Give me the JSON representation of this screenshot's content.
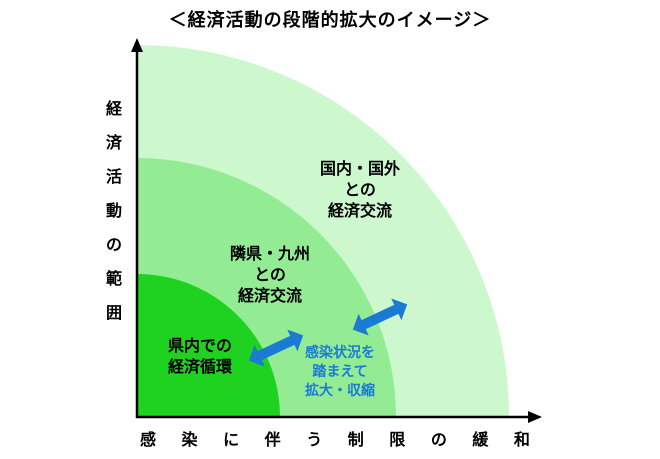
{
  "title": "＜経済活動の段階的拡大のイメージ＞",
  "y_axis_label": [
    "経",
    "済",
    "活",
    "動",
    "の",
    "範",
    "囲"
  ],
  "x_axis_label": [
    "感",
    "染",
    "に",
    "伴",
    "う",
    "制",
    "限",
    "の",
    "緩",
    "和"
  ],
  "zones": [
    {
      "lines": [
        "県内での",
        "経済循環"
      ],
      "color": "#1fd21f"
    },
    {
      "lines": [
        "隣県・九州",
        "との",
        "経済交流"
      ],
      "color": "#93ec93"
    },
    {
      "lines": [
        "国内・国外",
        "との",
        "経済交流"
      ],
      "color": "#cdf8cd"
    }
  ],
  "arrow_color": "#1a7ad4",
  "arrow_note": [
    "感染状況を",
    "踏まえて",
    "拡大・収縮"
  ]
}
